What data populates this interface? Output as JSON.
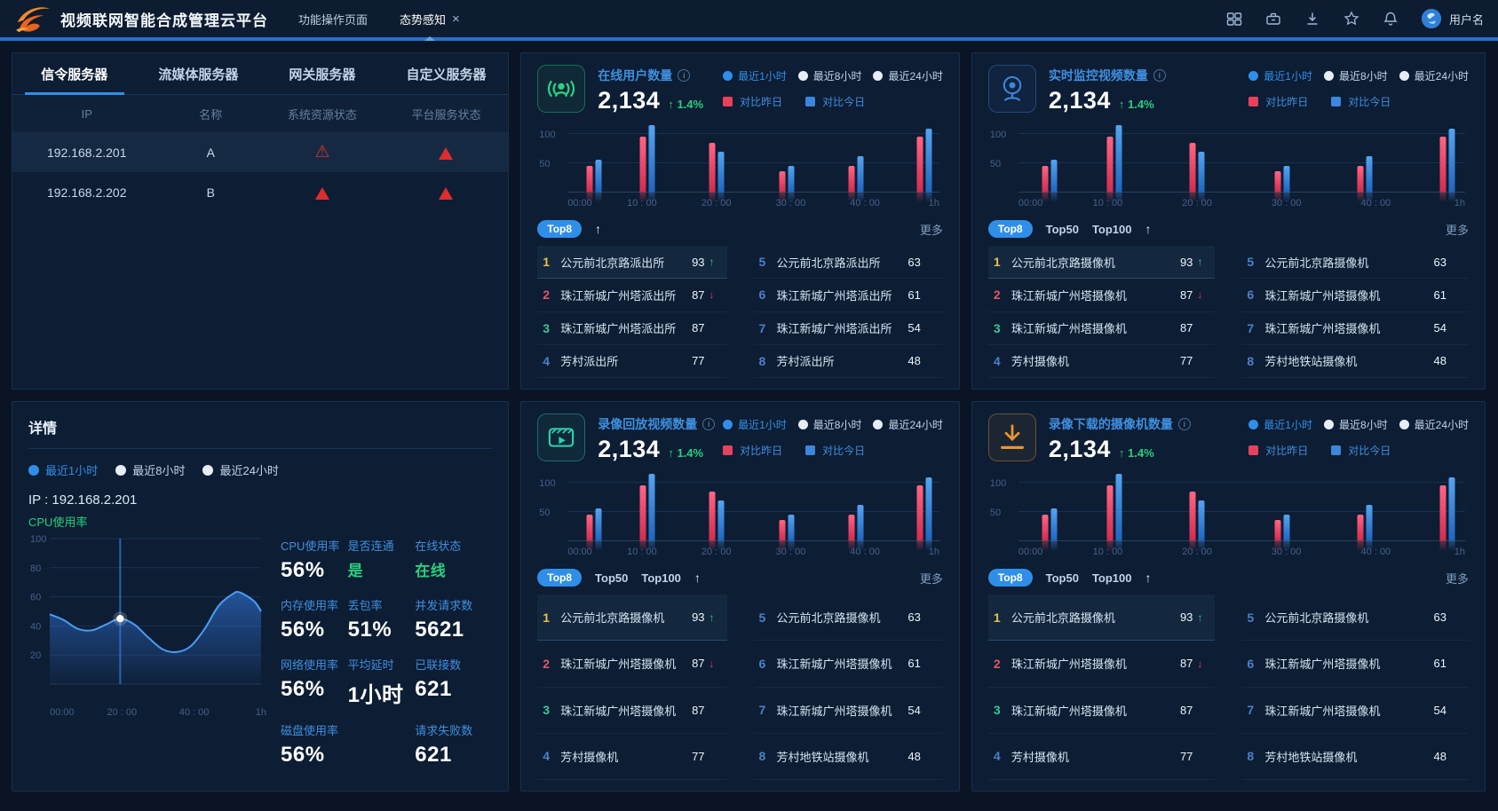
{
  "navbar": {
    "title": "视频联网智能合成管理云平台",
    "tabs": [
      {
        "label": "功能操作页面",
        "active": false,
        "closable": false
      },
      {
        "label": "态势感知",
        "active": true,
        "closable": true
      }
    ],
    "close_glyph": "×",
    "icons": [
      "apps-icon",
      "toolbox-icon",
      "download-icon",
      "star-icon",
      "bell-icon"
    ],
    "username": "用户名"
  },
  "server_panel": {
    "tabs": [
      "信令服务器",
      "流媒体服务器",
      "网关服务器",
      "自定义服务器"
    ],
    "active_tab": 0,
    "columns": [
      "IP",
      "名称",
      "系统资源状态",
      "平台服务状态"
    ],
    "rows": [
      {
        "ip": "192.168.2.201",
        "name": "A",
        "system_status": "warning-outline",
        "platform_status": "warning-solid",
        "selected": true
      },
      {
        "ip": "192.168.2.202",
        "name": "B",
        "system_status": "warning-solid",
        "platform_status": "warning-solid",
        "selected": false
      }
    ]
  },
  "detail_panel": {
    "title": "详情",
    "time_filters": [
      "最近1小时",
      "最近8小时",
      "最近24小时"
    ],
    "active_filter": 0,
    "ip_line": "IP : 192.168.2.201",
    "chart_label": "CPU使用率",
    "stats": [
      {
        "label": "CPU使用率",
        "value": "56%"
      },
      {
        "label": "是否连通",
        "value": "是",
        "accent": "green"
      },
      {
        "label": "在线状态",
        "value": "在线",
        "accent": "green"
      },
      {
        "label": "内存使用率",
        "value": "56%"
      },
      {
        "label": "丢包率",
        "value": "51%"
      },
      {
        "label": "并发请求数",
        "value": "5621"
      },
      {
        "label": "网络使用率",
        "value": "56%"
      },
      {
        "label": "平均延时",
        "value": "1小时"
      },
      {
        "label": "已联接数",
        "value": "621"
      },
      {
        "label": "磁盘使用率",
        "value": "56%"
      },
      {
        "label": "请求失败数",
        "value": "621",
        "col": 3
      }
    ]
  },
  "shared": {
    "time_filters": [
      "最近1小时",
      "最近8小时",
      "最近24小时"
    ],
    "active_filter": 0,
    "legend": [
      {
        "label": "对比昨日",
        "color": "#e8415e"
      },
      {
        "label": "对比今日",
        "color": "#3c86dd"
      }
    ],
    "more_label": "更多",
    "sort_arrow": "↑"
  },
  "kpi_panels": [
    {
      "icon": "online-users-icon",
      "accent": "#2ad181",
      "title": "在线用户数量",
      "value": "2,134",
      "delta": "1.4%",
      "delta_dir": "up",
      "top_tabs": [
        "Top8"
      ],
      "active_top": 0,
      "list": [
        {
          "rank": 1,
          "name": "公元前北京路派出所",
          "value": 93,
          "trend": "up"
        },
        {
          "rank": 2,
          "name": "珠江新城广州塔派出所",
          "value": 87,
          "trend": "down"
        },
        {
          "rank": 3,
          "name": "珠江新城广州塔派出所",
          "value": 87
        },
        {
          "rank": 4,
          "name": "芳村派出所",
          "value": 77
        },
        {
          "rank": 5,
          "name": "公元前北京路派出所",
          "value": 63
        },
        {
          "rank": 6,
          "name": "珠江新城广州塔派出所",
          "value": 61
        },
        {
          "rank": 7,
          "name": "珠江新城广州塔派出所",
          "value": 54
        },
        {
          "rank": 8,
          "name": "芳村派出所",
          "value": 48
        }
      ]
    },
    {
      "icon": "camera-icon",
      "accent": "#3c86dd",
      "title": "实时监控视频数量",
      "value": "2,134",
      "delta": "1.4%",
      "delta_dir": "up",
      "top_tabs": [
        "Top8",
        "Top50",
        "Top100"
      ],
      "active_top": 0,
      "list": [
        {
          "rank": 1,
          "name": "公元前北京路摄像机",
          "value": 93,
          "trend": "up"
        },
        {
          "rank": 2,
          "name": "珠江新城广州塔摄像机",
          "value": 87,
          "trend": "down"
        },
        {
          "rank": 3,
          "name": "珠江新城广州塔摄像机",
          "value": 87
        },
        {
          "rank": 4,
          "name": "芳村摄像机",
          "value": 77
        },
        {
          "rank": 5,
          "name": "公元前北京路摄像机",
          "value": 63
        },
        {
          "rank": 6,
          "name": "珠江新城广州塔摄像机",
          "value": 61
        },
        {
          "rank": 7,
          "name": "珠江新城广州塔摄像机",
          "value": 54
        },
        {
          "rank": 8,
          "name": "芳村地铁站摄像机",
          "value": 48
        }
      ]
    },
    {
      "icon": "playback-icon",
      "accent": "#2fd1b0",
      "title": "录像回放视频数量",
      "value": "2,134",
      "delta": "1.4%",
      "delta_dir": "up",
      "top_tabs": [
        "Top8",
        "Top50",
        "Top100"
      ],
      "active_top": 0,
      "list": [
        {
          "rank": 1,
          "name": "公元前北京路摄像机",
          "value": 93,
          "trend": "up"
        },
        {
          "rank": 2,
          "name": "珠江新城广州塔摄像机",
          "value": 87,
          "trend": "down"
        },
        {
          "rank": 3,
          "name": "珠江新城广州塔摄像机",
          "value": 87
        },
        {
          "rank": 4,
          "name": "芳村摄像机",
          "value": 77
        },
        {
          "rank": 5,
          "name": "公元前北京路摄像机",
          "value": 63
        },
        {
          "rank": 6,
          "name": "珠江新城广州塔摄像机",
          "value": 61
        },
        {
          "rank": 7,
          "name": "珠江新城广州塔摄像机",
          "value": 54
        },
        {
          "rank": 8,
          "name": "芳村地铁站摄像机",
          "value": 48
        }
      ]
    },
    {
      "icon": "download-kpi-icon",
      "accent": "#e8952f",
      "title": "录像下载的摄像机数量",
      "value": "2,134",
      "delta": "1.4%",
      "delta_dir": "up",
      "top_tabs": [
        "Top8",
        "Top50",
        "Top100"
      ],
      "active_top": 0,
      "list": [
        {
          "rank": 1,
          "name": "公元前北京路摄像机",
          "value": 93,
          "trend": "up"
        },
        {
          "rank": 2,
          "name": "珠江新城广州塔摄像机",
          "value": 87,
          "trend": "down"
        },
        {
          "rank": 3,
          "name": "珠江新城广州塔摄像机",
          "value": 87
        },
        {
          "rank": 4,
          "name": "芳村摄像机",
          "value": 77
        },
        {
          "rank": 5,
          "name": "公元前北京路摄像机",
          "value": 63
        },
        {
          "rank": 6,
          "name": "珠江新城广州塔摄像机",
          "value": 61
        },
        {
          "rank": 7,
          "name": "珠江新城广州塔摄像机",
          "value": 54
        },
        {
          "rank": 8,
          "name": "芳村地铁站摄像机",
          "value": 48
        }
      ]
    }
  ],
  "chart_data": [
    {
      "id": "kpi-bar-chart",
      "type": "bar",
      "applies_to": [
        "在线用户数量",
        "实时监控视频数量",
        "录像回放视频数量",
        "录像下载的摄像机数量"
      ],
      "x": [
        "00:00",
        "10 : 00",
        "20 : 00",
        "30 : 00",
        "40 : 00",
        "1h"
      ],
      "series": [
        {
          "name": "对比昨日",
          "color": "#e8415e",
          "values": [
            45,
            95,
            85,
            35,
            45,
            95
          ]
        },
        {
          "name": "对比今日",
          "color": "#3c86dd",
          "values": [
            55,
            115,
            70,
            45,
            62,
            110
          ]
        }
      ],
      "ylim": [
        0,
        120
      ],
      "yticks": [
        50,
        100
      ],
      "grid": true,
      "legend_position": "top-right"
    },
    {
      "id": "cpu-usage-chart",
      "type": "area",
      "title": "CPU使用率",
      "x_labels": [
        "00:00",
        "20 : 00",
        "40 : 00",
        "1h"
      ],
      "yticks": [
        20,
        40,
        60,
        80,
        100
      ],
      "ylim": [
        0,
        100
      ],
      "x_minutes_range": [
        0,
        60
      ],
      "points": [
        [
          0,
          48
        ],
        [
          4,
          44
        ],
        [
          8,
          38
        ],
        [
          12,
          37
        ],
        [
          16,
          41
        ],
        [
          20,
          45
        ],
        [
          24,
          41
        ],
        [
          28,
          32
        ],
        [
          32,
          24
        ],
        [
          36,
          22
        ],
        [
          40,
          26
        ],
        [
          44,
          38
        ],
        [
          48,
          54
        ],
        [
          52,
          62
        ],
        [
          54,
          63
        ],
        [
          58,
          57
        ],
        [
          60,
          50
        ]
      ],
      "highlight": {
        "x": 20,
        "y": 45
      },
      "grid": true
    }
  ]
}
